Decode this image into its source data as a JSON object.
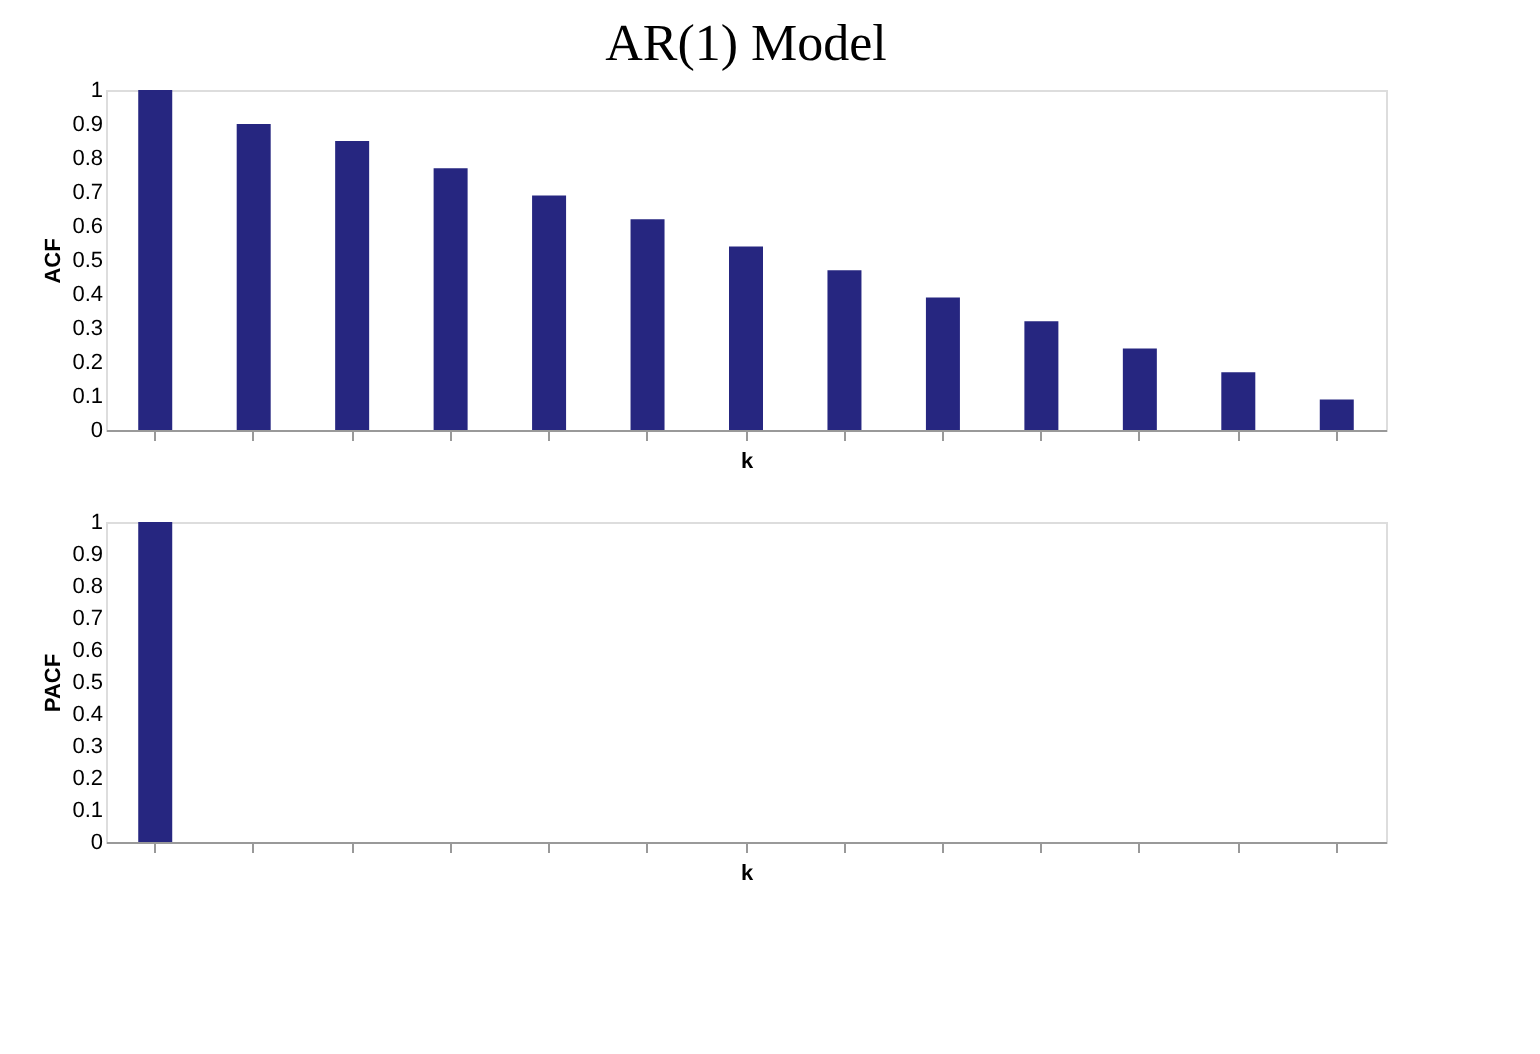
{
  "chart_data": [
    {
      "type": "bar",
      "title": "AR(1) Model",
      "xlabel": "k",
      "ylabel": "ACF",
      "categories": [
        null,
        null,
        null,
        null,
        null,
        null,
        null,
        null,
        null,
        null,
        null,
        null,
        null
      ],
      "values": [
        1,
        0.9,
        0.85,
        0.77,
        0.69,
        0.62,
        0.54,
        0.47,
        0.39,
        0.32,
        0.24,
        0.17,
        0.09
      ],
      "color": "#262680",
      "ylim": [
        0,
        1
      ],
      "yticks": [
        0,
        0.1,
        0.2,
        0.3,
        0.4,
        0.5,
        0.6,
        0.7,
        0.8,
        0.9,
        1
      ],
      "tick_labels": "y",
      "grid": false
    },
    {
      "type": "bar",
      "xlabel": "k",
      "ylabel": "PACF",
      "categories": [
        null,
        null,
        null,
        null,
        null,
        null,
        null,
        null,
        null,
        null,
        null,
        null,
        null
      ],
      "values": [
        1,
        0,
        0,
        0,
        0,
        0,
        0,
        0,
        0,
        0,
        0,
        0,
        0
      ],
      "color": "#262680",
      "ylim": [
        0,
        1
      ],
      "yticks": [
        0,
        0.1,
        0.2,
        0.3,
        0.4,
        0.5,
        0.6,
        0.7,
        0.8,
        0.9,
        1
      ],
      "tick_labels": "y",
      "grid": false
    }
  ]
}
